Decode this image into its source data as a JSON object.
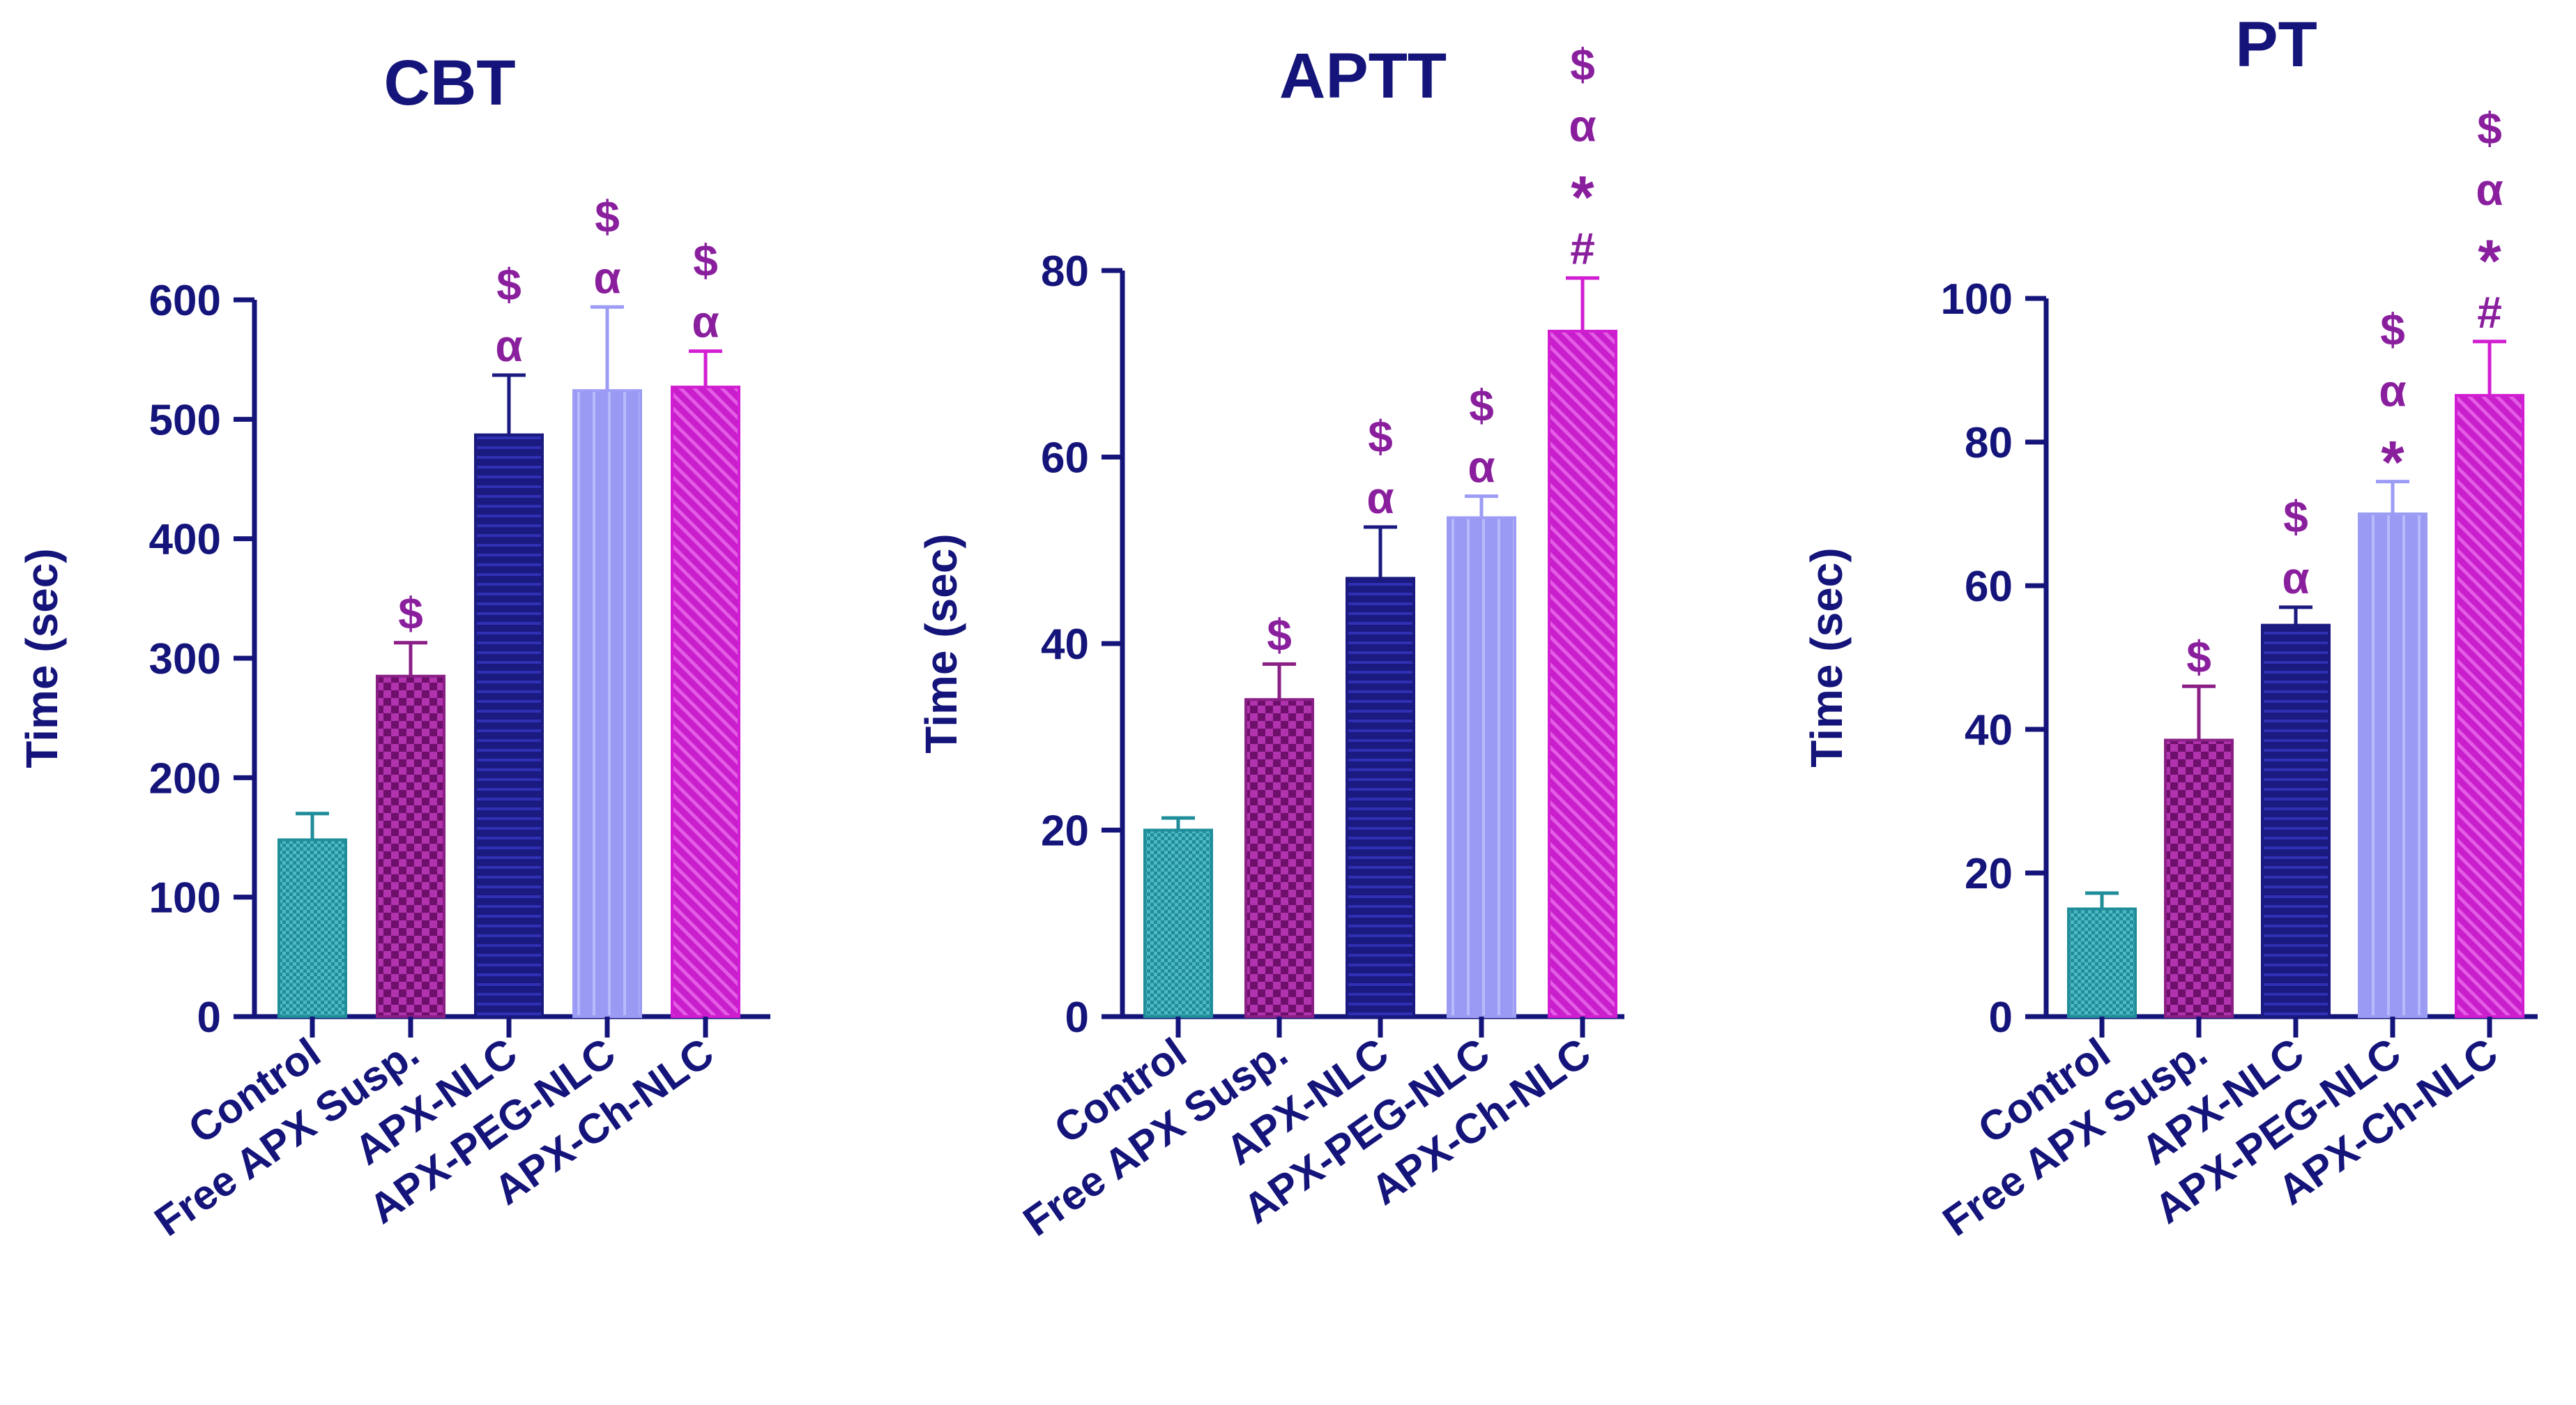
{
  "colors": {
    "axis": "#14147a",
    "sig": "#8a1f9e",
    "bars": [
      "#1f8e9a",
      "#8a1f86",
      "#1a1a80",
      "#9c9cf5",
      "#d21ed2"
    ]
  },
  "chart_data": [
    {
      "type": "bar",
      "title": "CBT",
      "xlabel": "",
      "ylabel": "Time (sec)",
      "ylim": [
        0,
        600
      ],
      "yticks": [
        0,
        100,
        200,
        300,
        400,
        500,
        600
      ],
      "categories": [
        "Control",
        "Free APX Susp.",
        "APX-NLC",
        "APX-PEG-NLC",
        "APX-Ch-NLC"
      ],
      "values": [
        148,
        285,
        487,
        524,
        527
      ],
      "errors": [
        22,
        28,
        50,
        70,
        30
      ],
      "annotations": [
        [],
        [
          "$"
        ],
        [
          "$",
          "α"
        ],
        [
          "$",
          "α"
        ],
        [
          "$",
          "α"
        ]
      ]
    },
    {
      "type": "bar",
      "title": "APTT",
      "xlabel": "",
      "ylabel": "Time (sec)",
      "ylim": [
        0,
        80
      ],
      "yticks": [
        0,
        20,
        40,
        60,
        80
      ],
      "categories": [
        "Control",
        "Free APX Susp.",
        "APX-NLC",
        "APX-PEG-NLC",
        "APX-Ch-NLC"
      ],
      "values": [
        20,
        34,
        47,
        53.5,
        73.5
      ],
      "errors": [
        1.3,
        3.8,
        5.5,
        2.3,
        5.7
      ],
      "annotations": [
        [],
        [
          "$"
        ],
        [
          "$",
          "α"
        ],
        [
          "$",
          "α"
        ],
        [
          "$",
          "α",
          "*",
          "#"
        ]
      ]
    },
    {
      "type": "bar",
      "title": "PT",
      "xlabel": "",
      "ylabel": "Time (sec)",
      "ylim": [
        0,
        100
      ],
      "yticks": [
        0,
        20,
        40,
        60,
        80,
        100
      ],
      "categories": [
        "Control",
        "Free APX Susp.",
        "APX-NLC",
        "APX-PEG-NLC",
        "APX-Ch-NLC"
      ],
      "values": [
        15,
        38.5,
        54.5,
        70,
        86.5
      ],
      "errors": [
        2.2,
        7.5,
        2.5,
        4.5,
        7.5
      ],
      "annotations": [
        [],
        [
          "$"
        ],
        [
          "$",
          "α"
        ],
        [
          "$",
          "α",
          "*"
        ],
        [
          "$",
          "α",
          "*",
          "#"
        ]
      ]
    }
  ]
}
